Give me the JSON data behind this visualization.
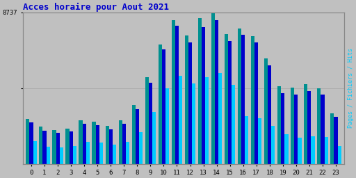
{
  "title": "Acces horaire pour Aout 2021",
  "title_color": "#0000cc",
  "title_fontsize": 9,
  "xlabel_labels": [
    "0",
    "1",
    "2",
    "3",
    "4",
    "5",
    "6",
    "7",
    "8",
    "9",
    "10",
    "11",
    "12",
    "13",
    "14",
    "15",
    "16",
    "17",
    "18",
    "19",
    "20",
    "21",
    "22",
    "23"
  ],
  "ylabel_right": "Pages / Fichiers / Hits",
  "ymax": 8737,
  "background_color": "#c0c0c0",
  "plot_bg_color": "#c0c0c0",
  "bar_width": 0.27,
  "pages_color": "#009090",
  "fichiers_color": "#0000cc",
  "hits_color": "#00ccff",
  "pages": [
    2600,
    2150,
    1950,
    2050,
    2500,
    2450,
    2200,
    2500,
    3400,
    5000,
    6900,
    8300,
    7400,
    8400,
    8737,
    7500,
    7800,
    7350,
    6100,
    4500,
    4400,
    4600,
    4350,
    2900
  ],
  "fichiers": [
    2400,
    1900,
    1780,
    1870,
    2300,
    2250,
    2000,
    2300,
    3150,
    4700,
    6600,
    7950,
    7000,
    7900,
    8300,
    7100,
    7450,
    7000,
    5700,
    4100,
    4000,
    4200,
    4000,
    2700
  ],
  "hits": [
    1300,
    990,
    960,
    1020,
    1270,
    1250,
    1130,
    1280,
    1850,
    3000,
    4350,
    5100,
    4650,
    5000,
    5250,
    4550,
    2750,
    2650,
    2200,
    1720,
    1500,
    1600,
    1550,
    1050
  ],
  "grid_color": "#aaaaaa",
  "tick_color": "#000000",
  "font_family": "monospace"
}
